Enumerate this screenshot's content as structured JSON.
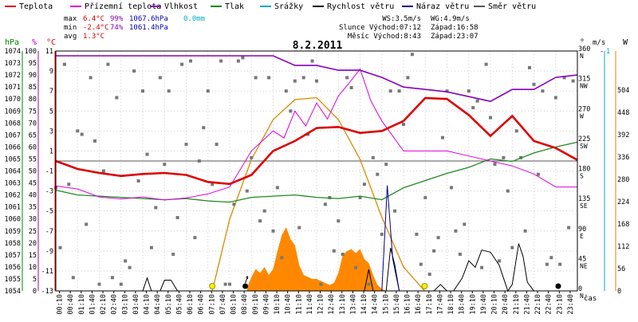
{
  "chart_data": {
    "type": "line",
    "title": "8.2.2011",
    "xlabel": "čas",
    "legend": {
      "position": "top",
      "items": [
        {
          "name": "Teplota",
          "color": "#dd0000"
        },
        {
          "name": "Přízemní teplota",
          "color": "#dd00dd"
        },
        {
          "name": "Vlhkost",
          "color": "#8800bb"
        },
        {
          "name": "Tlak",
          "color": "#008800"
        },
        {
          "name": "Srážky",
          "color": "#00aacc"
        },
        {
          "name": "Rychlost větru",
          "color": "#000000"
        },
        {
          "name": "Náraz větru",
          "color": "#000088"
        },
        {
          "name": "Směr větru",
          "color": "#555555"
        }
      ]
    },
    "stats": [
      {
        "label": "max",
        "temp": "6.4°C",
        "hum": "99%",
        "press": "1067.6hPa",
        "rain": "0.0mm"
      },
      {
        "label": "min",
        "temp": "-2.4°C",
        "hum": "74%",
        "press": "1061.4hPa",
        "rain": ""
      },
      {
        "label": "avg",
        "temp": "1.3°C",
        "hum": "",
        "press": "",
        "rain": ""
      }
    ],
    "info": [
      {
        "a": "WS:3.5m/s",
        "b": "WG:4.9m/s"
      },
      {
        "a": "Slunce Východ:07:12",
        "b": "Západ:16:58"
      },
      {
        "a": "Měsíc Východ:8:43",
        "b": "Západ:23:07"
      }
    ],
    "axes": {
      "hpa": {
        "title": "hPa",
        "ticks": [
          "1054",
          "1055",
          "1056",
          "1057",
          "1058",
          "1059",
          "1060",
          "1061",
          "1062",
          "1063",
          "1064",
          "1065",
          "1066",
          "1067",
          "1068",
          "1069",
          "1070",
          "1071",
          "1072",
          "1073",
          "1074"
        ],
        "color": "#008800"
      },
      "pct": {
        "title": "%",
        "ticks": [
          "0",
          "5",
          "10",
          "15",
          "20",
          "25",
          "30",
          "35",
          "40",
          "45",
          "50",
          "55",
          "60",
          "65",
          "70",
          "75",
          "80",
          "85",
          "90",
          "95",
          "100"
        ],
        "color": "#aa00aa"
      },
      "temp": {
        "title": "°C",
        "ticks": [
          "-13",
          "-11",
          "-9",
          "-7",
          "-5",
          "-3",
          "-1",
          "1",
          "3",
          "5",
          "7",
          "9",
          "11"
        ],
        "color": "#dd0000"
      },
      "dir": {
        "title": "°",
        "ticks": [
          {
            "deg": 0,
            "label": "0",
            "comp": "N"
          },
          {
            "deg": 45,
            "label": "45",
            "comp": "NE"
          },
          {
            "deg": 90,
            "label": "90",
            "comp": "E"
          },
          {
            "deg": 135,
            "label": "135",
            "comp": "SE"
          },
          {
            "deg": 180,
            "label": "180",
            "comp": "S"
          },
          {
            "deg": 225,
            "label": "225",
            "comp": "SW"
          },
          {
            "deg": 270,
            "label": "270",
            "comp": "W"
          },
          {
            "deg": 315,
            "label": "315",
            "comp": "NW"
          },
          {
            "deg": 360,
            "label": "360",
            "comp": "N"
          }
        ]
      },
      "ms": {
        "title": "m/s",
        "top": "1"
      },
      "solar": {
        "title": "W",
        "ticks": [
          "0",
          "56",
          "112",
          "168",
          "224",
          "280",
          "336",
          "392",
          "448",
          "504"
        ],
        "color": "#dd8800"
      }
    },
    "x_ticks": [
      "00:10",
      "00:40",
      "01:10",
      "01:40",
      "02:10",
      "02:40",
      "03:10",
      "03:40",
      "04:10",
      "04:40",
      "05:10",
      "05:40",
      "06:10",
      "06:40",
      "07:10",
      "07:40",
      "08:10",
      "08:40",
      "09:10",
      "09:40",
      "10:10",
      "10:40",
      "11:10",
      "11:40",
      "12:10",
      "12:40",
      "13:10",
      "13:40",
      "14:10",
      "14:40",
      "15:10",
      "15:40",
      "16:10",
      "16:40",
      "17:10",
      "17:40",
      "18:10",
      "18:40",
      "19:10",
      "19:40",
      "20:10",
      "20:40",
      "21:10",
      "21:40",
      "22:10",
      "22:40",
      "23:10",
      "23:40"
    ],
    "series": {
      "temperature": {
        "x": [
          0,
          1,
          2,
          3,
          4,
          5,
          6,
          7,
          8,
          9,
          10,
          11,
          12,
          13,
          14,
          15,
          16,
          17,
          18,
          19,
          20,
          21,
          22,
          23,
          24
        ],
        "y": [
          0,
          -0.8,
          -1.2,
          -1.5,
          -1.3,
          -1.2,
          -1.4,
          -2.1,
          -2.3,
          -1.4,
          1.0,
          2.0,
          3.3,
          3.4,
          2.8,
          3.0,
          4.0,
          6.3,
          6.2,
          4.6,
          2.5,
          4.5,
          2.0,
          1.3,
          0.1
        ]
      },
      "ground_temp": {
        "x": [
          0,
          1,
          2,
          3,
          4,
          5,
          6,
          7,
          8,
          9,
          10,
          10.5,
          11,
          11.5,
          12,
          12.5,
          13,
          13.5,
          14,
          14.5,
          15,
          15.5,
          16,
          17,
          18,
          19,
          20,
          21,
          22,
          23,
          24
        ],
        "y": [
          -2.5,
          -2.8,
          -3.6,
          -3.8,
          -3.6,
          -3.9,
          -3.7,
          -3.3,
          -2.6,
          1.0,
          3.0,
          2.3,
          5.0,
          3.5,
          5.8,
          4.2,
          6.5,
          7.8,
          9.2,
          6.0,
          4.0,
          2.5,
          1.0,
          1.0,
          1.0,
          0.5,
          0.0,
          -0.5,
          -1.3,
          -2.6,
          -2.6
        ]
      },
      "humidity": {
        "x": [
          0,
          1,
          2,
          3,
          4,
          5,
          6,
          7,
          8,
          9,
          10,
          11,
          12,
          13,
          14,
          15,
          16,
          17,
          18,
          19,
          20,
          21,
          22,
          23,
          24
        ],
        "y": [
          98,
          98,
          98,
          98,
          98,
          98,
          98,
          98,
          98,
          98,
          98,
          94,
          94,
          92,
          92,
          89,
          85,
          84,
          83,
          81,
          79,
          84,
          84,
          89,
          90
        ]
      },
      "pressure": {
        "x": [
          0,
          1,
          2,
          3,
          4,
          5,
          6,
          7,
          8,
          9,
          10,
          11,
          12,
          13,
          14,
          15,
          16,
          17,
          18,
          19,
          20,
          21,
          22,
          23,
          24
        ],
        "y": [
          1062.4,
          1062.0,
          1061.9,
          1061.8,
          1061.7,
          1061.6,
          1061.7,
          1061.5,
          1061.4,
          1061.8,
          1061.9,
          1062.0,
          1061.8,
          1061.7,
          1061.9,
          1061.6,
          1062.6,
          1063.2,
          1063.8,
          1064.3,
          1065.0,
          1064.8,
          1065.5,
          1066.0,
          1066.4
        ]
      },
      "wind_speed": {
        "x": [
          0,
          4.0,
          4.2,
          4.4,
          4.8,
          5.0,
          5.3,
          5.6,
          14.2,
          14.4,
          14.6,
          15.2,
          15.4,
          15.6,
          15.8,
          16.1,
          17.4,
          17.7,
          18.0,
          18.3,
          18.7,
          19.0,
          19.3,
          19.6,
          20.0,
          20.4,
          20.8,
          21.0,
          21.3,
          21.5,
          21.7,
          22.0,
          22.4,
          23.3,
          24
        ],
        "y": [
          0,
          0,
          0.6,
          0,
          0,
          0.5,
          0.5,
          0,
          0,
          1.0,
          0,
          0,
          2.0,
          1.2,
          0,
          0,
          0,
          0.3,
          0,
          0,
          0.6,
          1.4,
          1.1,
          1.9,
          1.8,
          1.2,
          0,
          0.3,
          2.2,
          1.6,
          0.4,
          0,
          0,
          0,
          0
        ]
      },
      "wind_gust": {
        "x": [
          0,
          15.0,
          15.25,
          15.5,
          15.8,
          16.0,
          24
        ],
        "y": [
          0,
          0,
          4.9,
          1.5,
          0,
          0,
          0
        ]
      },
      "solar": {
        "x": [
          7.2,
          8,
          9,
          10,
          11,
          12,
          13,
          14,
          15,
          16,
          16.97
        ],
        "y": [
          0,
          180,
          330,
          430,
          480,
          485,
          430,
          330,
          185,
          60,
          0
        ]
      },
      "solar_measured": {
        "x": [
          8.8,
          9.0,
          9.2,
          9.4,
          9.6,
          9.8,
          10.0,
          10.2,
          10.4,
          10.6,
          10.8,
          11.0,
          11.2,
          11.4,
          11.6,
          11.8,
          12.0,
          12.2,
          12.4,
          12.6,
          12.8,
          13.0,
          13.2,
          13.4,
          13.6,
          13.8,
          14.0,
          14.2,
          14.4,
          14.6,
          14.8,
          15.0,
          15.2
        ],
        "y": [
          8,
          35,
          55,
          45,
          60,
          40,
          55,
          100,
          140,
          160,
          130,
          115,
          65,
          40,
          35,
          30,
          30,
          25,
          20,
          15,
          20,
          45,
          90,
          100,
          105,
          95,
          105,
          80,
          70,
          40,
          15,
          5,
          0
        ]
      },
      "wind_dir": {
        "x": [
          0.0,
          0.2,
          0.4,
          0.6,
          0.8,
          1.0,
          1.2,
          1.4,
          1.6,
          1.8,
          2.0,
          2.2,
          2.4,
          2.6,
          2.8,
          3.0,
          3.2,
          3.4,
          3.6,
          3.8,
          4.0,
          4.2,
          4.4,
          4.6,
          4.8,
          5.0,
          5.2,
          5.4,
          5.6,
          5.8,
          6.0,
          6.2,
          6.4,
          6.6,
          6.8,
          7.0,
          7.2,
          7.4,
          7.6,
          7.8,
          8.0,
          8.2,
          8.4,
          8.6,
          8.8,
          9.0,
          9.2,
          9.4,
          9.6,
          9.8,
          10.0,
          10.2,
          10.4,
          10.6,
          10.8,
          11.0,
          11.2,
          11.4,
          11.6,
          11.8,
          12.0,
          12.2,
          12.4,
          12.6,
          12.8,
          13.0,
          13.2,
          13.4,
          13.6,
          13.8,
          14.0,
          14.2,
          14.4,
          14.6,
          14.8,
          15.0,
          15.2,
          15.4,
          15.6,
          15.8,
          16.0,
          16.2,
          16.4,
          16.6,
          16.8,
          17.0,
          17.2,
          17.4,
          17.6,
          17.8,
          18.0,
          18.2,
          18.4,
          18.6,
          18.8,
          19.0,
          19.2,
          19.4,
          19.6,
          19.8,
          20.0,
          20.2,
          20.4,
          20.6,
          20.8,
          21.0,
          21.2,
          21.4,
          21.6,
          21.8,
          22.0,
          22.2,
          22.4,
          22.6,
          22.8,
          23.0,
          23.2,
          23.4,
          23.6,
          23.8
        ],
        "y": [
          155,
          65,
          340,
          160,
          20,
          240,
          235,
          100,
          320,
          225,
          10,
          180,
          340,
          20,
          290,
          10,
          45,
          35,
          330,
          165,
          300,
          205,
          65,
          125,
          320,
          190,
          300,
          55,
          110,
          340,
          220,
          345,
          80,
          195,
          245,
          300,
          160,
          220,
          345,
          10,
          10,
          130,
          345,
          350,
          150,
          200,
          320,
          105,
          120,
          320,
          90,
          155,
          50,
          300,
          270,
          315,
          95,
          320,
          235,
          345,
          315,
          10,
          130,
          140,
          60,
          105,
          55,
          320,
          305,
          35,
          140,
          160,
          10,
          200,
          175,
          85,
          190,
          300,
          120,
          300,
          250,
          320,
          355,
          85,
          40,
          140,
          25,
          60,
          80,
          230,
          300,
          155,
          90,
          55,
          100,
          300,
          275,
          285,
          35,
          340,
          260,
          190,
          45,
          200,
          150,
          65,
          240,
          200,
          90,
          335,
          310,
          175,
          300,
          40,
          50,
          290,
          40,
          320,
          95,
          315
        ]
      }
    }
  }
}
